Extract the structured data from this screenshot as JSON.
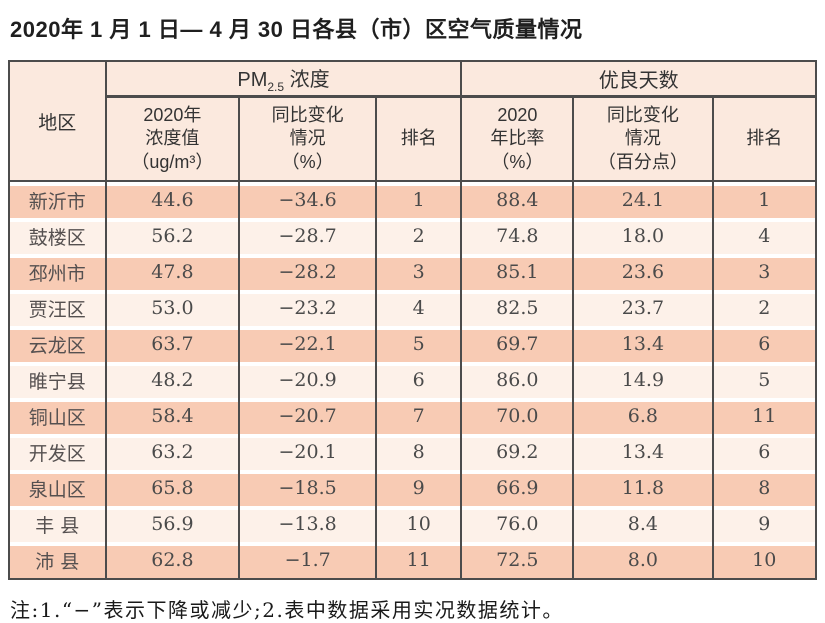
{
  "title": "2020年 1 月 1 日— 4 月 30 日各县（市）区空气质量情况",
  "table": {
    "header": {
      "region": "地区",
      "pm_group": {
        "prefix": "PM",
        "sub": "2.5",
        "suffix": " 浓度"
      },
      "good_days_group": "优良天数",
      "sub_headers": {
        "pm_value": "2020年\n浓度值\n（ug/m³）",
        "pm_change": "同比变化\n情况\n（%）",
        "pm_rank": "排名",
        "good_rate": "2020\n年比率\n（%）",
        "good_change": "同比变化\n情况\n（百分点）",
        "good_rank": "排名"
      }
    },
    "rows": [
      {
        "region": "新沂市",
        "pm_value": "44.6",
        "pm_change": "−34.6",
        "pm_rank": "1",
        "good_rate": "88.4",
        "good_change": "24.1",
        "good_rank": "1"
      },
      {
        "region": "鼓楼区",
        "pm_value": "56.2",
        "pm_change": "−28.7",
        "pm_rank": "2",
        "good_rate": "74.8",
        "good_change": "18.0",
        "good_rank": "4"
      },
      {
        "region": "邳州市",
        "pm_value": "47.8",
        "pm_change": "−28.2",
        "pm_rank": "3",
        "good_rate": "85.1",
        "good_change": "23.6",
        "good_rank": "3"
      },
      {
        "region": "贾汪区",
        "pm_value": "53.0",
        "pm_change": "−23.2",
        "pm_rank": "4",
        "good_rate": "82.5",
        "good_change": "23.7",
        "good_rank": "2"
      },
      {
        "region": "云龙区",
        "pm_value": "63.7",
        "pm_change": "−22.1",
        "pm_rank": "5",
        "good_rate": "69.7",
        "good_change": "13.4",
        "good_rank": "6"
      },
      {
        "region": "睢宁县",
        "pm_value": "48.2",
        "pm_change": "−20.9",
        "pm_rank": "6",
        "good_rate": "86.0",
        "good_change": "14.9",
        "good_rank": "5"
      },
      {
        "region": "铜山区",
        "pm_value": "58.4",
        "pm_change": "−20.7",
        "pm_rank": "7",
        "good_rate": "70.0",
        "good_change": "6.8",
        "good_rank": "11"
      },
      {
        "region": "开发区",
        "pm_value": "63.2",
        "pm_change": "−20.1",
        "pm_rank": "8",
        "good_rate": "69.2",
        "good_change": "13.4",
        "good_rank": "6"
      },
      {
        "region": "泉山区",
        "pm_value": "65.8",
        "pm_change": "−18.5",
        "pm_rank": "9",
        "good_rate": "66.9",
        "good_change": "11.8",
        "good_rank": "8"
      },
      {
        "region": "丰 县",
        "pm_value": "56.9",
        "pm_change": "−13.8",
        "pm_rank": "10",
        "good_rate": "76.0",
        "good_change": "8.4",
        "good_rank": "9"
      },
      {
        "region": "沛 县",
        "pm_value": "62.8",
        "pm_change": "−1.7",
        "pm_rank": "11",
        "good_rate": "72.5",
        "good_change": "8.0",
        "good_rank": "10"
      }
    ]
  },
  "footnote": "注:1.“−”表示下降或减少;2.表中数据采用实况数据统计。",
  "colors": {
    "row_odd": "#f8cbb4",
    "row_even": "#fdf1e9",
    "header_bg": "#fbe9de",
    "border": "#4c4c4c"
  }
}
